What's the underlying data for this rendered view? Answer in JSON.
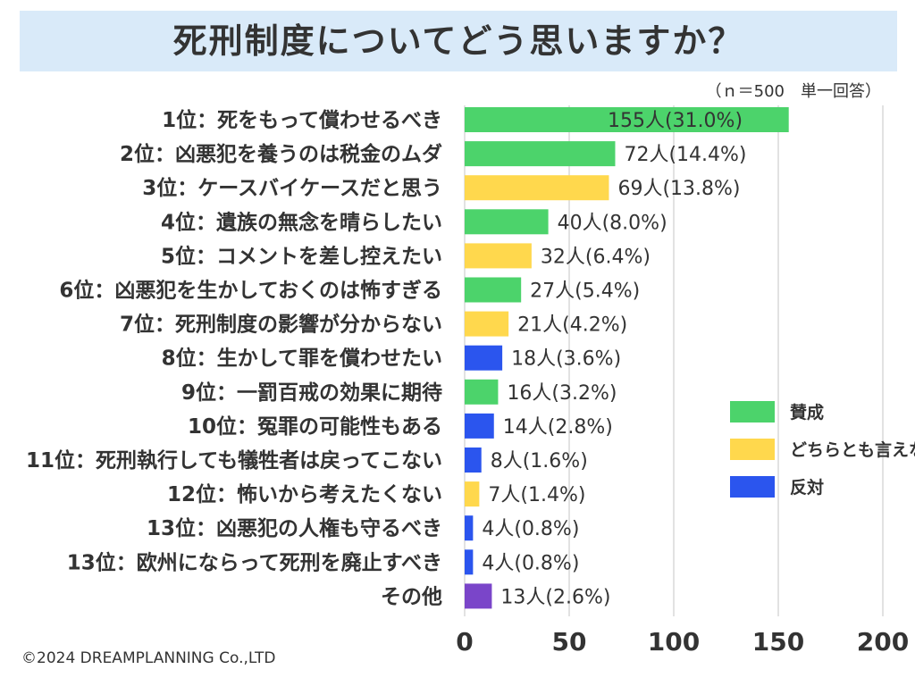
{
  "title": "死刑制度についてどう思いますか？",
  "note": "（ｎ＝500　単一回答）",
  "credit": "©2024 DREAMPLANNING Co.,LTD",
  "colors": {
    "agree": "#4cd36b",
    "neutral": "#ffd84d",
    "oppose": "#2b55ee",
    "other": "#7a45c9",
    "grid": "#d9d9d9"
  },
  "legend": [
    {
      "key": "agree",
      "label": "賛成"
    },
    {
      "key": "neutral",
      "label": "どちらとも言えない"
    },
    {
      "key": "oppose",
      "label": "反対"
    }
  ],
  "chart_data": {
    "type": "bar",
    "orientation": "horizontal",
    "title": "死刑制度についてどう思いますか？",
    "categories": [
      "1位：死をもって償わせるべき",
      "2位：凶悪犯を養うのは税金のムダ",
      "3位：ケースバイケースだと思う",
      "4位：遺族の無念を晴らしたい",
      "5位：コメントを差し控えたい",
      "6位：凶悪犯を生かしておくのは怖すぎる",
      "7位：死刑制度の影響が分からない",
      "8位：生かして罪を償わせたい",
      "9位：一罰百戒の効果に期待",
      "10位：冤罪の可能性もある",
      "11位：死刑執行しても犠牲者は戻ってこない",
      "12位：怖いから考えたくない",
      "13位：凶悪犯の人権も守るべき",
      "13位：欧州にならって死刑を廃止すべき",
      "その他"
    ],
    "values": [
      155,
      72,
      69,
      40,
      32,
      27,
      21,
      18,
      16,
      14,
      8,
      7,
      4,
      4,
      13
    ],
    "groups": [
      "agree",
      "agree",
      "neutral",
      "agree",
      "neutral",
      "agree",
      "neutral",
      "oppose",
      "agree",
      "oppose",
      "oppose",
      "neutral",
      "oppose",
      "oppose",
      "other"
    ],
    "labels": [
      "155人(31.0%)",
      "72人(14.4%)",
      "69人(13.8%)",
      "40人(8.0%)",
      "32人(6.4%)",
      "27人(5.4%)",
      "21人(4.2%)",
      "18人(3.6%)",
      "16人(3.2%)",
      "14人(2.8%)",
      "8人(1.6%)",
      "7人(1.4%)",
      "4人(0.8%)",
      "4人(0.8%)",
      "13人(2.6%)"
    ],
    "xlim": [
      0,
      200
    ],
    "xticks": [
      0,
      50,
      100,
      150,
      200
    ],
    "grid": true,
    "legend_position": "right"
  }
}
